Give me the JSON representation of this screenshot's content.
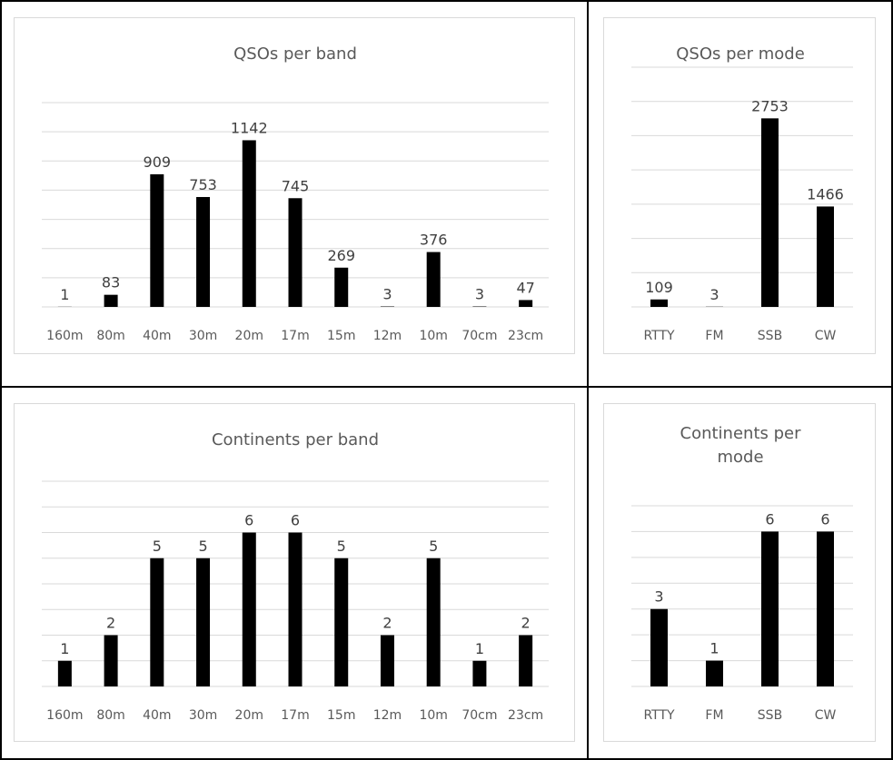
{
  "charts": [
    {
      "type": "bar",
      "title": "QSOs per band",
      "categories": [
        "160m",
        "80m",
        "40m",
        "30m",
        "20m",
        "17m",
        "15m",
        "12m",
        "10m",
        "70cm",
        "23cm"
      ],
      "values": [
        1,
        83,
        909,
        753,
        1142,
        745,
        269,
        3,
        376,
        3,
        47
      ],
      "ylim": [
        0,
        1400
      ],
      "grid_step": 200,
      "grid": true,
      "legend": "none"
    },
    {
      "type": "bar",
      "title": "QSOs per mode",
      "categories": [
        "RTTY",
        "FM",
        "SSB",
        "CW"
      ],
      "values": [
        109,
        3,
        2753,
        1466
      ],
      "ylim": [
        0,
        3500
      ],
      "grid_step": 500,
      "grid": true,
      "legend": "none"
    },
    {
      "type": "bar",
      "title": "Continents per band",
      "categories": [
        "160m",
        "80m",
        "40m",
        "30m",
        "20m",
        "17m",
        "15m",
        "12m",
        "10m",
        "70cm",
        "23cm"
      ],
      "values": [
        1,
        2,
        5,
        5,
        6,
        6,
        5,
        2,
        5,
        1,
        2
      ],
      "ylim": [
        0,
        8
      ],
      "grid_step": 1,
      "grid": true,
      "legend": "none"
    },
    {
      "type": "bar",
      "title": "Continents per mode",
      "title_lines": [
        "Continents per",
        "mode"
      ],
      "categories": [
        "RTTY",
        "FM",
        "SSB",
        "CW"
      ],
      "values": [
        3,
        1,
        6,
        6
      ],
      "ylim": [
        0,
        7
      ],
      "grid_step": 1,
      "grid": true,
      "legend": "none"
    }
  ],
  "chart_data": [
    {
      "type": "bar",
      "title": "QSOs per band",
      "categories": [
        "160m",
        "80m",
        "40m",
        "30m",
        "20m",
        "17m",
        "15m",
        "12m",
        "10m",
        "70cm",
        "23cm"
      ],
      "values": [
        1,
        83,
        909,
        753,
        1142,
        745,
        269,
        3,
        376,
        3,
        47
      ],
      "xlabel": "",
      "ylabel": "",
      "ylim": [
        0,
        1400
      ],
      "grid": true
    },
    {
      "type": "bar",
      "title": "QSOs per mode",
      "categories": [
        "RTTY",
        "FM",
        "SSB",
        "CW"
      ],
      "values": [
        109,
        3,
        2753,
        1466
      ],
      "xlabel": "",
      "ylabel": "",
      "ylim": [
        0,
        3500
      ],
      "grid": true
    },
    {
      "type": "bar",
      "title": "Continents per band",
      "categories": [
        "160m",
        "80m",
        "40m",
        "30m",
        "20m",
        "17m",
        "15m",
        "12m",
        "10m",
        "70cm",
        "23cm"
      ],
      "values": [
        1,
        2,
        5,
        5,
        6,
        6,
        5,
        2,
        5,
        1,
        2
      ],
      "xlabel": "",
      "ylabel": "",
      "ylim": [
        0,
        8
      ],
      "grid": true
    },
    {
      "type": "bar",
      "title": "Continents per mode",
      "categories": [
        "RTTY",
        "FM",
        "SSB",
        "CW"
      ],
      "values": [
        3,
        1,
        6,
        6
      ],
      "xlabel": "",
      "ylabel": "",
      "ylim": [
        0,
        7
      ],
      "grid": true
    }
  ]
}
